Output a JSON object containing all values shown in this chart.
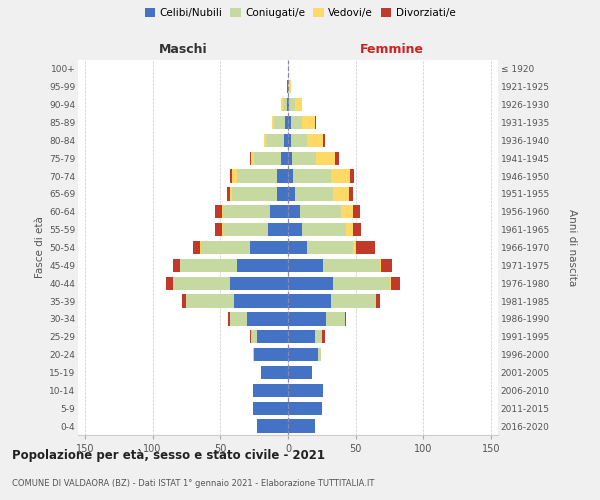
{
  "age_groups": [
    "0-4",
    "5-9",
    "10-14",
    "15-19",
    "20-24",
    "25-29",
    "30-34",
    "35-39",
    "40-44",
    "45-49",
    "50-54",
    "55-59",
    "60-64",
    "65-69",
    "70-74",
    "75-79",
    "80-84",
    "85-89",
    "90-94",
    "95-99",
    "100+"
  ],
  "birth_years": [
    "2016-2020",
    "2011-2015",
    "2006-2010",
    "2001-2005",
    "1996-2000",
    "1991-1995",
    "1986-1990",
    "1981-1985",
    "1976-1980",
    "1971-1975",
    "1966-1970",
    "1961-1965",
    "1956-1960",
    "1951-1955",
    "1946-1950",
    "1941-1945",
    "1936-1940",
    "1931-1935",
    "1926-1930",
    "1921-1925",
    "≤ 1920"
  ],
  "maschi": {
    "celibi": [
      23,
      26,
      26,
      20,
      25,
      23,
      30,
      40,
      43,
      38,
      28,
      15,
      13,
      8,
      8,
      5,
      3,
      2,
      1,
      1,
      0
    ],
    "coniugati": [
      0,
      0,
      0,
      0,
      1,
      4,
      13,
      35,
      42,
      42,
      36,
      33,
      35,
      33,
      30,
      20,
      13,
      8,
      3,
      0,
      0
    ],
    "vedovi": [
      0,
      0,
      0,
      0,
      0,
      0,
      0,
      0,
      0,
      0,
      1,
      1,
      1,
      2,
      3,
      2,
      2,
      2,
      1,
      0,
      0
    ],
    "divorziati": [
      0,
      0,
      0,
      0,
      0,
      1,
      1,
      3,
      5,
      5,
      5,
      5,
      5,
      2,
      2,
      1,
      0,
      0,
      0,
      0,
      0
    ]
  },
  "femmine": {
    "nubili": [
      20,
      25,
      26,
      18,
      22,
      20,
      28,
      32,
      33,
      26,
      14,
      10,
      9,
      5,
      4,
      3,
      2,
      2,
      1,
      0,
      0
    ],
    "coniugate": [
      0,
      0,
      0,
      0,
      2,
      5,
      14,
      33,
      42,
      42,
      34,
      33,
      30,
      28,
      28,
      18,
      12,
      8,
      4,
      1,
      0
    ],
    "vedove": [
      0,
      0,
      0,
      0,
      0,
      0,
      0,
      0,
      1,
      1,
      2,
      5,
      9,
      12,
      14,
      14,
      12,
      10,
      5,
      1,
      0
    ],
    "divorziate": [
      0,
      0,
      0,
      0,
      0,
      2,
      1,
      3,
      7,
      8,
      14,
      6,
      5,
      3,
      3,
      3,
      1,
      1,
      0,
      0,
      0
    ]
  },
  "colors": {
    "celibi": "#4472c4",
    "coniugati": "#c5d9a0",
    "vedovi": "#ffd966",
    "divorziati": "#c0392b"
  },
  "xlim": 155,
  "title": "Popolazione per età, sesso e stato civile - 2021",
  "subtitle": "COMUNE DI VALDAORA (BZ) - Dati ISTAT 1° gennaio 2021 - Elaborazione TUTTITALIA.IT",
  "ylabel_left": "Fasce di età",
  "ylabel_right": "Anni di nascita",
  "xlabel_maschi": "Maschi",
  "xlabel_femmine": "Femmine",
  "bg_color": "#f0f0f0",
  "plot_bg": "#ffffff",
  "grid_color": "#bbbbbb"
}
